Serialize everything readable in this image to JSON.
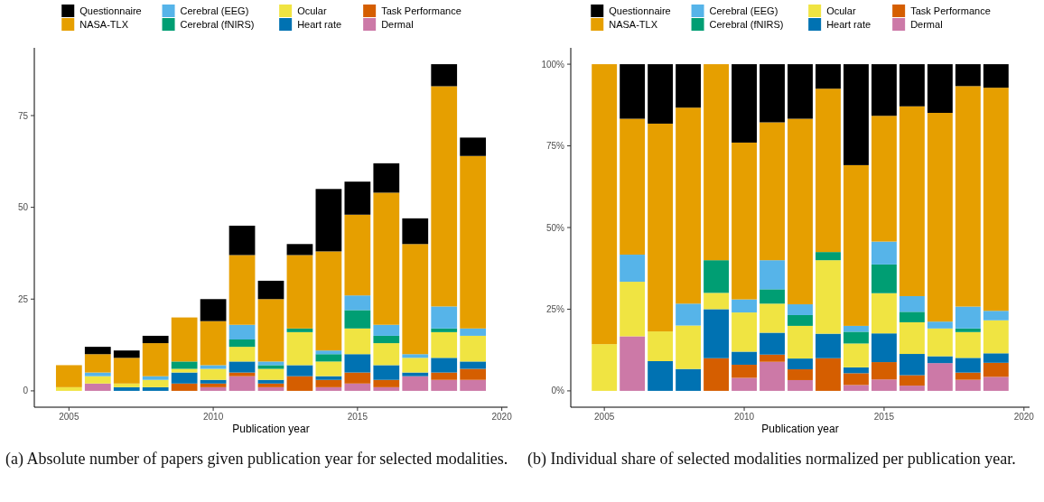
{
  "chart_data": [
    {
      "type": "bar",
      "stacked": true,
      "legend": "top",
      "xlabel": "Publication year",
      "annotations": [
        "(a) Absolute number of papers given publication year for selected modalities."
      ],
      "x": [
        2005,
        2006,
        2007,
        2008,
        2009,
        2010,
        2011,
        2012,
        2013,
        2014,
        2015,
        2016,
        2017,
        2018,
        2019
      ],
      "xlim": [
        2003.8,
        2020.2
      ],
      "xticks": [
        2005,
        2010,
        2015,
        2020
      ],
      "ylim": [
        -4.45,
        93.45
      ],
      "yticks": [
        0,
        25,
        50,
        75
      ],
      "series": [
        {
          "name": "Dermal",
          "color": "#cc79a7",
          "values": [
            0,
            2,
            0,
            0,
            0,
            1,
            4,
            1,
            0,
            1,
            2,
            1,
            4,
            3,
            3
          ]
        },
        {
          "name": "Task Performance",
          "color": "#d55e00",
          "values": [
            0,
            0,
            0,
            0,
            2,
            1,
            1,
            1,
            4,
            2,
            3,
            2,
            0,
            2,
            3
          ]
        },
        {
          "name": "Heart rate",
          "color": "#0072b2",
          "values": [
            0,
            0,
            1,
            1,
            3,
            1,
            3,
            1,
            3,
            1,
            5,
            4,
            1,
            4,
            2
          ]
        },
        {
          "name": "Ocular",
          "color": "#f0e442",
          "values": [
            1,
            2,
            1,
            2,
            1,
            3,
            4,
            3,
            9,
            4,
            7,
            6,
            4,
            7,
            7
          ]
        },
        {
          "name": "Cerebral (fNIRS)",
          "color": "#009e73",
          "values": [
            0,
            0,
            0,
            0,
            2,
            0,
            2,
            1,
            1,
            2,
            5,
            2,
            0,
            1,
            0
          ]
        },
        {
          "name": "Cerebral (EEG)",
          "color": "#56b4e9",
          "values": [
            0,
            1,
            0,
            1,
            0,
            1,
            4,
            1,
            0,
            1,
            4,
            3,
            1,
            6,
            2
          ]
        },
        {
          "name": "NASA-TLX",
          "color": "#e69f00",
          "values": [
            6,
            5,
            7,
            9,
            12,
            12,
            19,
            17,
            20,
            27,
            22,
            36,
            30,
            60,
            47
          ]
        },
        {
          "name": "Questionnaire",
          "color": "#000000",
          "values": [
            0,
            2,
            2,
            2,
            0,
            6,
            8,
            5,
            3,
            17,
            9,
            8,
            7,
            6,
            5
          ]
        }
      ]
    },
    {
      "type": "bar",
      "stacked": true,
      "legend": "top",
      "xlabel": "Publication year",
      "annotations": [
        "(b) Individual share of selected modalities normalized per publication year."
      ],
      "x": [
        2005,
        2006,
        2007,
        2008,
        2009,
        2010,
        2011,
        2012,
        2013,
        2014,
        2015,
        2016,
        2017,
        2018,
        2019
      ],
      "xlim": [
        2003.8,
        2020.2
      ],
      "xticks": [
        2005,
        2010,
        2015,
        2020
      ],
      "ylim": [
        -5,
        105
      ],
      "yticks": [
        {
          "value": 0,
          "label": "0%"
        },
        {
          "value": 25,
          "label": "25%"
        },
        {
          "value": 50,
          "label": "50%"
        },
        {
          "value": 75,
          "label": "75%"
        },
        {
          "value": 100,
          "label": "100%"
        }
      ],
      "series": [
        {
          "name": "Dermal",
          "color": "#cc79a7",
          "values": [
            0,
            16.7,
            0,
            0,
            0,
            4,
            8.9,
            3.3,
            0,
            1.8,
            3.5,
            1.6,
            8.5,
            3.4,
            4.3
          ]
        },
        {
          "name": "Task Performance",
          "color": "#d55e00",
          "values": [
            0,
            0,
            0,
            0,
            10,
            4,
            2.2,
            3.3,
            10,
            3.6,
            5.3,
            3.2,
            0,
            2.2,
            4.3
          ]
        },
        {
          "name": "Heart rate",
          "color": "#0072b2",
          "values": [
            0,
            0,
            9.1,
            6.7,
            15,
            4,
            6.7,
            3.3,
            7.5,
            1.8,
            8.8,
            6.5,
            2.1,
            4.5,
            2.9
          ]
        },
        {
          "name": "Ocular",
          "color": "#f0e442",
          "values": [
            14.3,
            16.7,
            9.1,
            13.3,
            5,
            12,
            8.9,
            10,
            22.5,
            7.3,
            12.3,
            9.7,
            8.5,
            7.9,
            10.1
          ]
        },
        {
          "name": "Cerebral (fNIRS)",
          "color": "#009e73",
          "values": [
            0,
            0,
            0,
            0,
            10,
            0,
            4.4,
            3.3,
            2.5,
            3.6,
            8.8,
            3.2,
            0,
            1.1,
            0
          ]
        },
        {
          "name": "Cerebral (EEG)",
          "color": "#56b4e9",
          "values": [
            0,
            8.3,
            0,
            6.7,
            0,
            4,
            8.9,
            3.3,
            0,
            1.8,
            7,
            4.8,
            2.1,
            6.7,
            2.9
          ]
        },
        {
          "name": "NASA-TLX",
          "color": "#e69f00",
          "values": [
            85.7,
            41.6,
            63.6,
            60,
            60,
            48,
            42.2,
            56.8,
            50,
            49.2,
            38.5,
            58.1,
            63.9,
            67.5,
            68.3
          ]
        },
        {
          "name": "Questionnaire",
          "color": "#000000",
          "values": [
            0,
            16.7,
            18.2,
            13.3,
            0,
            24,
            17.8,
            16.7,
            7.5,
            30.9,
            15.8,
            12.9,
            14.9,
            6.7,
            7.2
          ]
        }
      ]
    }
  ]
}
